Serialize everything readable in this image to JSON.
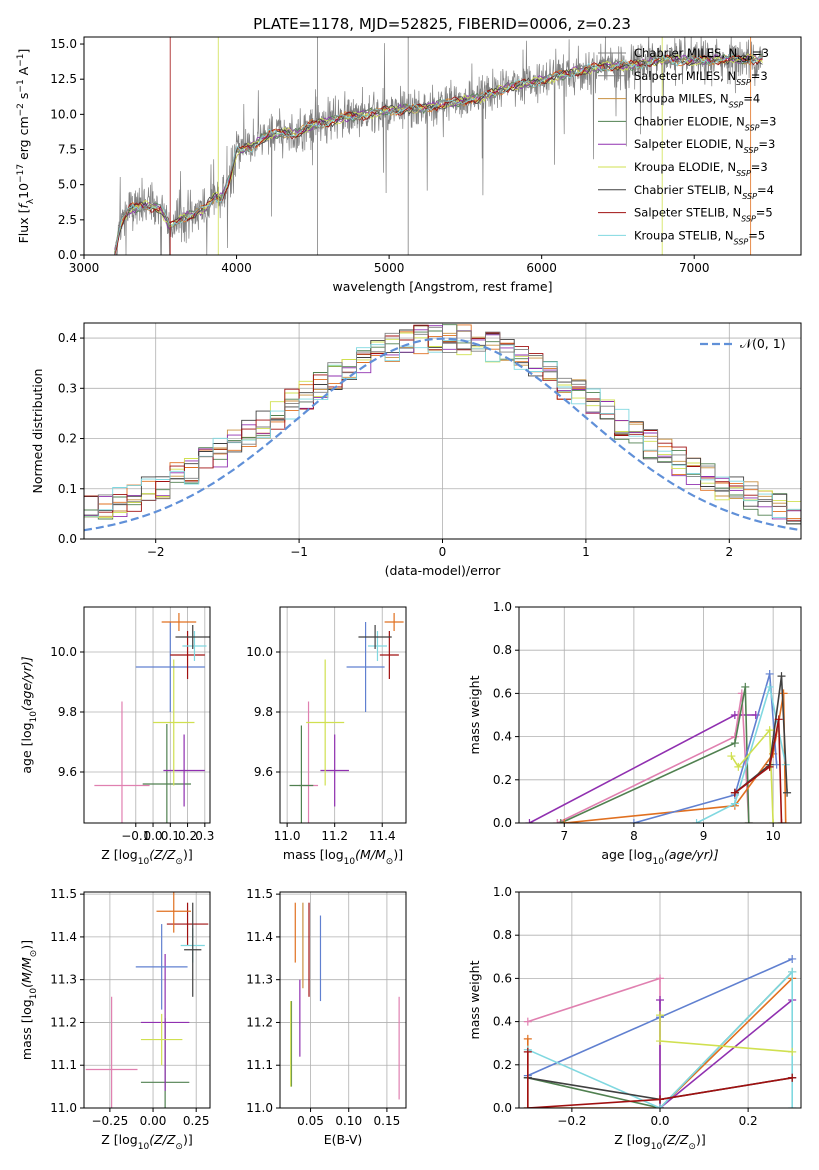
{
  "title": "PLATE=1178, MJD=52825, FIBERID=0006, z=0.23",
  "colors": [
    "#808080",
    "#e07020",
    "#c89040",
    "#508050",
    "#9030b0",
    "#d0e050",
    "#404040",
    "#a01010",
    "#80d8e0",
    "#e080b0",
    "#6080d0",
    "#a0a0a0"
  ],
  "legend_spectrum": [
    {
      "pre": "Chabrier MILES, N",
      "sub": "SSP",
      "post": "=3"
    },
    {
      "pre": "Salpeter MILES, N",
      "sub": "SSP",
      "post": "=3"
    },
    {
      "pre": "Kroupa MILES, N",
      "sub": "SSP",
      "post": "=4"
    },
    {
      "pre": "Chabrier ELODIE, N",
      "sub": "SSP",
      "post": "=3"
    },
    {
      "pre": "Salpeter ELODIE, N",
      "sub": "SSP",
      "post": "=3"
    },
    {
      "pre": "Kroupa ELODIE, N",
      "sub": "SSP",
      "post": "=3"
    },
    {
      "pre": "Chabrier STELIB, N",
      "sub": "SSP",
      "post": "=4"
    },
    {
      "pre": "Salpeter STELIB, N",
      "sub": "SSP",
      "post": "=5"
    },
    {
      "pre": "Kroupa STELIB, N",
      "sub": "SSP",
      "post": "=5"
    }
  ],
  "chart_data": [
    {
      "id": "spectrum",
      "type": "line",
      "xlabel": "wavelength [Angstrom, rest frame]",
      "ylabel": {
        "a": "Flux [",
        "f": "f",
        "lam": "λ",
        "b": "10",
        "exp1": "−17",
        "c": " erg cm",
        "exp2": "−2",
        "d": " s",
        "exp3": "−1",
        "e": " A",
        "exp4": "−1",
        "g": "]"
      },
      "xlim": [
        3000,
        7700
      ],
      "ylim": [
        0,
        15.5
      ],
      "xticks": [
        3000,
        4000,
        5000,
        6000,
        7000
      ],
      "yticks": [
        0.0,
        2.5,
        5.0,
        7.5,
        10.0,
        12.5,
        15.0
      ],
      "xtick_labels": [
        "3000",
        "4000",
        "5000",
        "6000",
        "7000"
      ],
      "ytick_labels": [
        "0.0",
        "2.5",
        "5.0",
        "7.5",
        "10.0",
        "12.5",
        "15.0"
      ],
      "continuum": [
        [
          3200,
          0.1
        ],
        [
          3240,
          2.2
        ],
        [
          3300,
          3.3
        ],
        [
          3400,
          3.5
        ],
        [
          3500,
          3.3
        ],
        [
          3560,
          2.1
        ],
        [
          3640,
          2.6
        ],
        [
          3720,
          2.9
        ],
        [
          3800,
          3.4
        ],
        [
          3860,
          4.2
        ],
        [
          3900,
          4.0
        ],
        [
          3960,
          5.5
        ],
        [
          4000,
          7.4
        ],
        [
          4100,
          7.7
        ],
        [
          4200,
          8.5
        ],
        [
          4300,
          8.7
        ],
        [
          4400,
          8.6
        ],
        [
          4500,
          9.3
        ],
        [
          4600,
          9.4
        ],
        [
          4700,
          9.8
        ],
        [
          4800,
          9.9
        ],
        [
          5000,
          10.3
        ],
        [
          5200,
          10.4
        ],
        [
          5400,
          10.8
        ],
        [
          5600,
          11.2
        ],
        [
          5800,
          12.0
        ],
        [
          6000,
          12.4
        ],
        [
          6200,
          13.0
        ],
        [
          6400,
          13.4
        ],
        [
          6600,
          13.5
        ],
        [
          6800,
          13.9
        ],
        [
          7000,
          13.8
        ],
        [
          7200,
          13.9
        ],
        [
          7400,
          13.9
        ]
      ],
      "data_spectrum": {
        "name": "data",
        "x_start": 3200,
        "x_end": 7450,
        "noise": 0.9
      }
    },
    {
      "id": "residual",
      "type": "histogram",
      "xlabel": "(data-model)/error",
      "ylabel": "Normed distribution",
      "xlim": [
        -2.5,
        2.5
      ],
      "ylim": [
        0,
        0.43
      ],
      "xticks": [
        -2,
        -1,
        0,
        1,
        2
      ],
      "yticks": [
        0.0,
        0.1,
        0.2,
        0.3,
        0.4
      ],
      "xtick_labels": [
        "−2",
        "−1",
        "0",
        "1",
        "2"
      ],
      "ytick_labels": [
        "0.0",
        "0.1",
        "0.2",
        "0.3",
        "0.4"
      ],
      "gaussian_label": "𝒩(0, 1)",
      "gaussian_color": "#6090d8"
    },
    {
      "id": "age_vs_z",
      "type": "errorbar",
      "xlabel": {
        "text": "Z [log",
        "sub": "10",
        "rest": "(Z/Z",
        "sun": "⊙",
        "end": ")]"
      },
      "ylabel": {
        "text": "age  [log",
        "sub": "10",
        "rest": "(age/yr)]"
      },
      "xlim": [
        -0.4,
        0.33
      ],
      "ylim": [
        9.43,
        10.15
      ],
      "xticks": [
        -0.1,
        0.0,
        0.1,
        0.2,
        0.3
      ],
      "yticks": [
        9.6,
        9.8,
        10.0
      ],
      "xtick_labels": [
        "−0.1",
        "0.0",
        "0.1",
        "0.2",
        "0.3"
      ],
      "ytick_labels": [
        "9.6",
        "9.8",
        "10.0"
      ],
      "points": [
        {
          "c": 9,
          "x": -0.18,
          "xe": 0.16,
          "y": 9.555,
          "ye": 0.28
        },
        {
          "c": 3,
          "x": 0.08,
          "xe": 0.14,
          "y": 9.56,
          "ye": 0.2
        },
        {
          "c": 4,
          "x": 0.18,
          "xe": 0.12,
          "y": 9.605,
          "ye": 0.12
        },
        {
          "c": 5,
          "x": 0.12,
          "xe": 0.12,
          "y": 9.765,
          "ye": 0.21
        },
        {
          "c": 10,
          "x": 0.1,
          "xe": 0.2,
          "y": 9.95,
          "ye": 0.15
        },
        {
          "c": 7,
          "x": 0.2,
          "xe": 0.1,
          "y": 9.99,
          "ye": 0.08
        },
        {
          "c": 8,
          "x": 0.24,
          "xe": 0.07,
          "y": 10.02,
          "ye": 0.05
        },
        {
          "c": 6,
          "x": 0.23,
          "xe": 0.1,
          "y": 10.05,
          "ye": 0.04
        },
        {
          "c": 1,
          "x": 0.15,
          "xe": 0.1,
          "y": 10.1,
          "ye": 0.03
        }
      ]
    },
    {
      "id": "age_vs_mass",
      "type": "errorbar",
      "xlabel": {
        "text": "mass [log",
        "sub": "10",
        "rest": "(M/M",
        "sun": "⊙",
        "end": ")]"
      },
      "ylabel": {
        "text": ""
      },
      "xlim": [
        10.97,
        11.5
      ],
      "ylim": [
        9.43,
        10.15
      ],
      "xticks": [
        11.0,
        11.2,
        11.4
      ],
      "yticks": [
        9.6,
        9.8,
        10.0
      ],
      "xtick_labels": [
        "11.0",
        "11.2",
        "11.4"
      ],
      "ytick_labels": [
        "9.6",
        "9.8",
        "10.0"
      ],
      "points": [
        {
          "c": 9,
          "x": 11.09,
          "xe": 0.04,
          "y": 9.555,
          "ye": 0.28
        },
        {
          "c": 3,
          "x": 11.06,
          "xe": 0.05,
          "y": 9.555,
          "ye": 0.2
        },
        {
          "c": 4,
          "x": 11.2,
          "xe": 0.06,
          "y": 9.605,
          "ye": 0.12
        },
        {
          "c": 5,
          "x": 11.16,
          "xe": 0.08,
          "y": 9.765,
          "ye": 0.21
        },
        {
          "c": 10,
          "x": 11.33,
          "xe": 0.08,
          "y": 9.95,
          "ye": 0.15
        },
        {
          "c": 7,
          "x": 11.43,
          "xe": 0.04,
          "y": 9.99,
          "ye": 0.08
        },
        {
          "c": 8,
          "x": 11.38,
          "xe": 0.04,
          "y": 10.02,
          "ye": 0.05
        },
        {
          "c": 6,
          "x": 11.37,
          "xe": 0.07,
          "y": 10.05,
          "ye": 0.04
        },
        {
          "c": 1,
          "x": 11.45,
          "xe": 0.04,
          "y": 10.1,
          "ye": 0.03
        }
      ]
    },
    {
      "id": "massweight_vs_age",
      "type": "line",
      "xlabel": {
        "text": "age  [log",
        "sub": "10",
        "rest": "(age/yr)]"
      },
      "ylabel": {
        "text": "mass weight"
      },
      "xlim": [
        6.35,
        10.4
      ],
      "ylim": [
        0,
        1.0
      ],
      "xticks": [
        7,
        8,
        9,
        10
      ],
      "yticks": [
        0.0,
        0.2,
        0.4,
        0.6,
        0.8,
        1.0
      ],
      "xtick_labels": [
        "7",
        "8",
        "9",
        "10"
      ],
      "ytick_labels": [
        "0.0",
        "0.2",
        "0.4",
        "0.6",
        "0.8",
        "1.0"
      ],
      "series": [
        {
          "c": 4,
          "x": [
            6.5,
            9.45,
            9.5,
            9.75
          ],
          "y": [
            0.0,
            0.5,
            0.5,
            0.5
          ]
        },
        {
          "c": 9,
          "x": [
            6.9,
            9.45,
            9.55,
            9.65
          ],
          "y": [
            0.0,
            0.4,
            0.6,
            0.0
          ]
        },
        {
          "c": 3,
          "x": [
            6.95,
            9.45,
            9.6,
            9.65
          ],
          "y": [
            0.0,
            0.37,
            0.63,
            0.0
          ]
        },
        {
          "c": 1,
          "x": [
            7.0,
            9.45,
            10.0,
            10.15,
            10.18
          ],
          "y": [
            0.0,
            0.08,
            0.32,
            0.6,
            0.0
          ]
        },
        {
          "c": 10,
          "x": [
            8.0,
            9.45,
            9.95,
            10.05
          ],
          "y": [
            0.0,
            0.13,
            0.69,
            0.27
          ]
        },
        {
          "c": 8,
          "x": [
            8.9,
            9.45,
            9.95,
            10.18
          ],
          "y": [
            0.0,
            0.09,
            0.63,
            0.27
          ]
        },
        {
          "c": 5,
          "x": [
            9.4,
            9.5,
            9.95,
            10.0
          ],
          "y": [
            0.31,
            0.26,
            0.43,
            0.0
          ]
        },
        {
          "c": 6,
          "x": [
            9.45,
            9.95,
            10.12,
            10.2
          ],
          "y": [
            0.14,
            0.27,
            0.68,
            0.14
          ]
        },
        {
          "c": 7,
          "x": [
            9.45,
            9.95,
            10.08,
            10.12
          ],
          "y": [
            0.14,
            0.26,
            0.48,
            0.0
          ]
        }
      ]
    },
    {
      "id": "mass_vs_z",
      "type": "errorbar",
      "xlabel": {
        "text": "Z [log",
        "sub": "10",
        "rest": "(Z/Z",
        "sun": "⊙",
        "end": ")]"
      },
      "ylabel": {
        "text": "mass [log",
        "sub": "10",
        "rest": "(M/M",
        "sun": "⊙",
        "end": ")]"
      },
      "xlim": [
        -0.4,
        0.33
      ],
      "ylim": [
        11.0,
        11.505
      ],
      "xticks": [
        -0.25,
        0.0,
        0.25
      ],
      "yticks": [
        11.0,
        11.1,
        11.2,
        11.3,
        11.4,
        11.5
      ],
      "xtick_labels": [
        "−0.25",
        "0.00",
        "0.25"
      ],
      "ytick_labels": [
        "11.0",
        "11.1",
        "11.2",
        "11.3",
        "11.4",
        "11.5"
      ],
      "points": [
        {
          "c": 9,
          "x": -0.24,
          "xe": 0.15,
          "y": 11.09,
          "ye": 0.17
        },
        {
          "c": 3,
          "x": 0.07,
          "xe": 0.14,
          "y": 11.06,
          "ye": 0.15
        },
        {
          "c": 4,
          "x": 0.07,
          "xe": 0.14,
          "y": 11.2,
          "ye": 0.16
        },
        {
          "c": 5,
          "x": 0.05,
          "xe": 0.12,
          "y": 11.16,
          "ye": 0.06
        },
        {
          "c": 10,
          "x": 0.05,
          "xe": 0.15,
          "y": 11.33,
          "ye": 0.1
        },
        {
          "c": 7,
          "x": 0.2,
          "xe": 0.12,
          "y": 11.43,
          "ye": 0.05
        },
        {
          "c": 8,
          "x": 0.23,
          "xe": 0.07,
          "y": 11.38,
          "ye": 0.04
        },
        {
          "c": 6,
          "x": 0.23,
          "xe": 0.05,
          "y": 11.37,
          "ye": 0.11
        },
        {
          "c": 1,
          "x": 0.12,
          "xe": 0.1,
          "y": 11.46,
          "ye": 0.05
        }
      ]
    },
    {
      "id": "mass_vs_ebv",
      "type": "errorbar",
      "xlabel": {
        "text": "E(B-V)"
      },
      "ylabel": {
        "text": ""
      },
      "xlim": [
        0.01,
        0.175
      ],
      "ylim": [
        11.0,
        11.505
      ],
      "xticks": [
        0.05,
        0.1,
        0.15
      ],
      "yticks": [
        11.0,
        11.1,
        11.2,
        11.3,
        11.4,
        11.5
      ],
      "xtick_labels": [
        "0.05",
        "0.10",
        "0.15"
      ],
      "ytick_labels": [
        "11.0",
        "11.1",
        "11.2",
        "11.3",
        "11.4",
        "11.5"
      ],
      "points": [
        {
          "c": 9,
          "x": 0.166,
          "xe": 0,
          "y": 11.14,
          "ye": 0.12
        },
        {
          "c": 3,
          "x": 0.025,
          "xe": 0,
          "y": 11.15,
          "ye": 0.1
        },
        {
          "c": 5,
          "x": 0.024,
          "xe": 0,
          "y": 11.15,
          "ye": 0.1
        },
        {
          "c": 4,
          "x": 0.036,
          "xe": 0,
          "y": 11.21,
          "ye": 0.09
        },
        {
          "c": 10,
          "x": 0.063,
          "xe": 0,
          "y": 11.35,
          "ye": 0.1
        },
        {
          "c": 1,
          "x": 0.03,
          "xe": 0,
          "y": 11.41,
          "ye": 0.07
        },
        {
          "c": 7,
          "x": 0.048,
          "xe": 0,
          "y": 11.37,
          "ye": 0.11
        },
        {
          "c": 2,
          "x": 0.04,
          "xe": 0,
          "y": 11.38,
          "ye": 0.1
        }
      ]
    },
    {
      "id": "massweight_vs_z",
      "type": "line",
      "xlabel": {
        "text": "Z [log",
        "sub": "10",
        "rest": "(Z/Z",
        "sun": "⊙",
        "end": ")]"
      },
      "ylabel": {
        "text": "mass weight"
      },
      "xlim": [
        -0.32,
        0.32
      ],
      "ylim": [
        0,
        1.0
      ],
      "xticks": [
        -0.2,
        0.0,
        0.2
      ],
      "yticks": [
        0.0,
        0.2,
        0.4,
        0.6,
        0.8,
        1.0
      ],
      "xtick_labels": [
        "−0.2",
        "0.0",
        "0.2"
      ],
      "ytick_labels": [
        "0.0",
        "0.2",
        "0.4",
        "0.6",
        "0.8",
        "1.0"
      ],
      "series": [
        {
          "c": 9,
          "x": [
            -0.3,
            0.0,
            0.0
          ],
          "y": [
            0.4,
            0.6,
            0.0
          ]
        },
        {
          "c": 10,
          "x": [
            -0.3,
            0.0,
            0.3
          ],
          "y": [
            0.15,
            0.42,
            0.69
          ]
        },
        {
          "c": 1,
          "x": [
            -0.3,
            -0.3,
            0.0,
            0.3
          ],
          "y": [
            0.32,
            0.0,
            0.0,
            0.6
          ]
        },
        {
          "c": 3,
          "x": [
            -0.3,
            0.0,
            0.3
          ],
          "y": [
            0.14,
            0.0,
            0.63
          ]
        },
        {
          "c": 4,
          "x": [
            0.0,
            0.0,
            0.3
          ],
          "y": [
            0.5,
            0.0,
            0.5
          ]
        },
        {
          "c": 8,
          "x": [
            -0.3,
            0.0,
            0.3,
            0.3
          ],
          "y": [
            0.27,
            0.0,
            0.63,
            0.0
          ]
        },
        {
          "c": 5,
          "x": [
            0.0,
            0.0,
            0.3
          ],
          "y": [
            0.43,
            0.31,
            0.26
          ]
        },
        {
          "c": 6,
          "x": [
            -0.3,
            0.0,
            0.3
          ],
          "y": [
            0.14,
            0.04,
            0.14
          ]
        },
        {
          "c": 7,
          "x": [
            -0.3,
            -0.3,
            0.0,
            0.3
          ],
          "y": [
            0.26,
            0.0,
            0.04,
            0.14
          ]
        }
      ]
    }
  ]
}
